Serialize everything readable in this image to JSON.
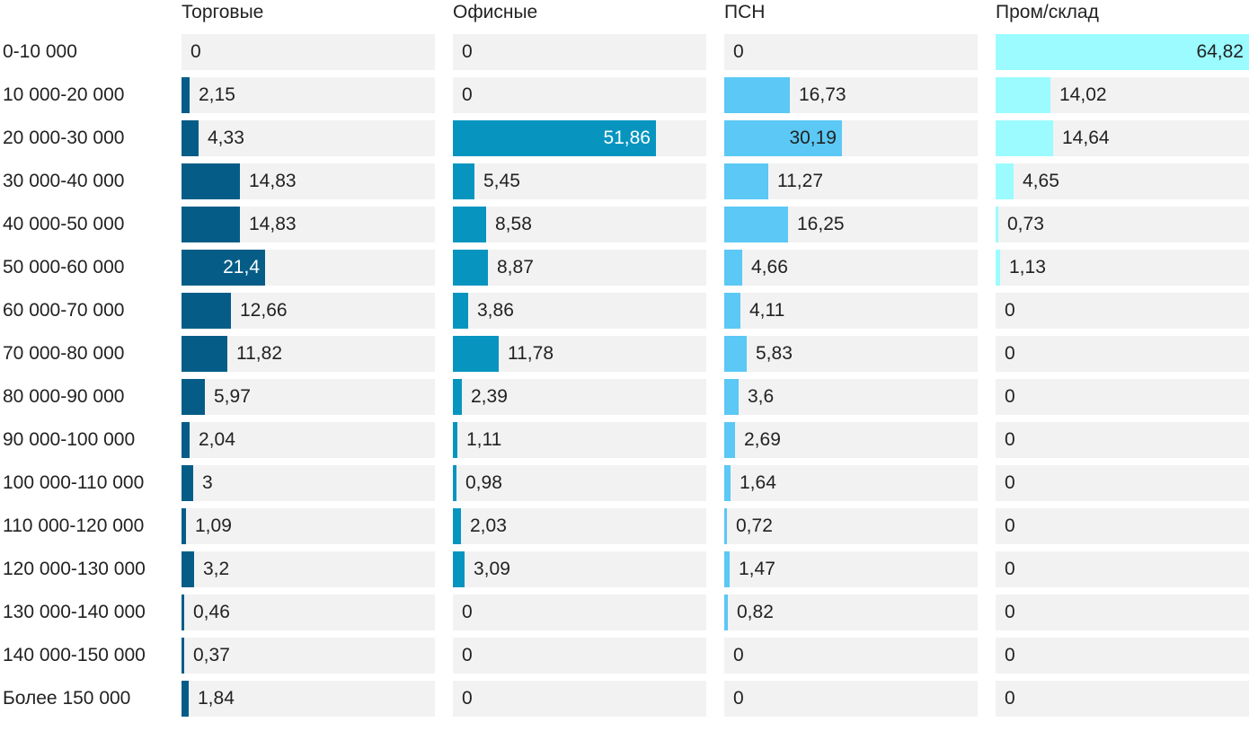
{
  "chart_data": {
    "type": "bar",
    "orientation": "horizontal",
    "layout": "small-multiples",
    "categories": [
      "0-10 000",
      "10 000-20 000",
      "20 000-30 000",
      "30 000-40 000",
      "40 000-50 000",
      "50 000-60 000",
      "60 000-70 000",
      "70 000-80 000",
      "80 000-90 000",
      "90 000-100 000",
      "100 000-110 000",
      "110 000-120 000",
      "120 000-130 000",
      "130 000-140 000",
      "140 000-150 000",
      "Более 150 000"
    ],
    "series": [
      {
        "name": "Торговые",
        "color": "#055d87",
        "label_color_inside": "#ffffff",
        "values": [
          "0",
          "2,15",
          "4,33",
          "14,83",
          "14,83",
          "21,4",
          "12,66",
          "11,82",
          "5,97",
          "2,04",
          "3",
          "1,09",
          "3,2",
          "0,46",
          "0,37",
          "1,84"
        ]
      },
      {
        "name": "Офисные",
        "color": "#0795c0",
        "label_color_inside": "#ffffff",
        "values": [
          "0",
          "0",
          "51,86",
          "5,45",
          "8,58",
          "8,87",
          "3,86",
          "11,78",
          "2,39",
          "1,11",
          "0,98",
          "2,03",
          "3,09",
          "0",
          "0",
          "0"
        ]
      },
      {
        "name": "ПСН",
        "color": "#5bc8f5",
        "label_color_inside": "#222222",
        "values": [
          "0",
          "16,73",
          "30,19",
          "11,27",
          "16,25",
          "4,66",
          "4,11",
          "5,83",
          "3,6",
          "2,69",
          "1,64",
          "0,72",
          "1,47",
          "0,82",
          "0",
          "0"
        ]
      },
      {
        "name": "Пром/склад",
        "color": "#9bfbff",
        "label_color_inside": "#222222",
        "values": [
          "64,82",
          "14,02",
          "14,64",
          "4,65",
          "0,73",
          "1,13",
          "0",
          "0",
          "0",
          "0",
          "0",
          "0",
          "0",
          "0",
          "0",
          "0"
        ]
      }
    ],
    "track_color": "#f2f2f2",
    "grid": false,
    "legend": "none"
  }
}
